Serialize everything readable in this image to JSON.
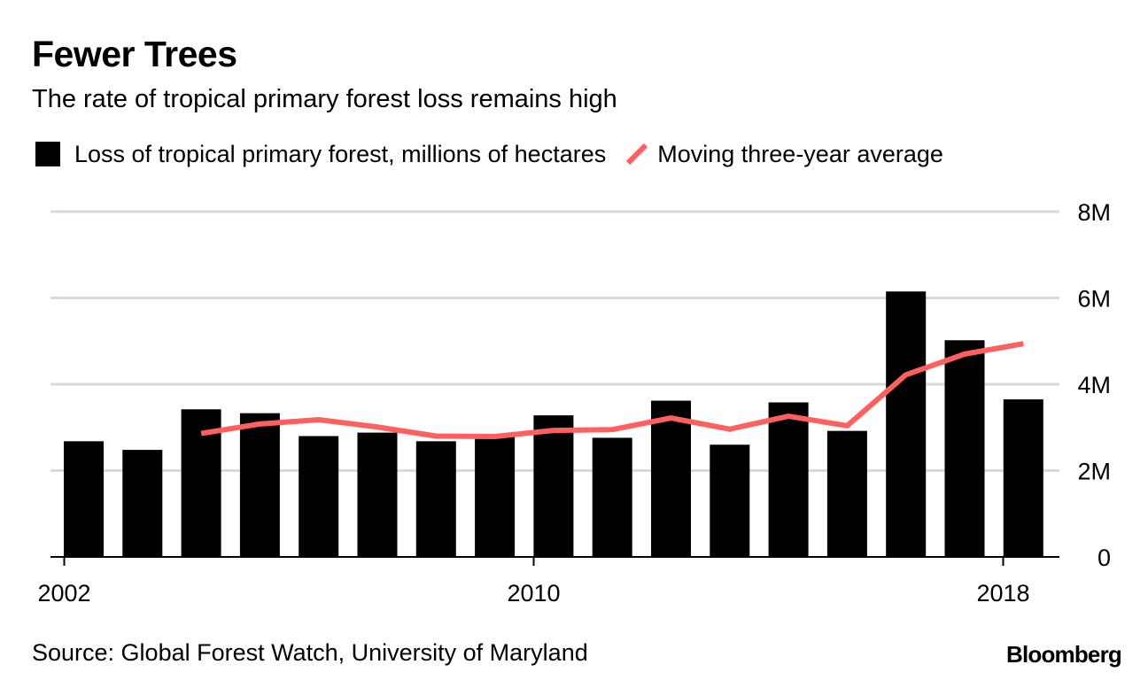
{
  "title": "Fewer Trees",
  "subtitle": "The rate of tropical primary forest loss remains high",
  "legend": {
    "bars_label": "Loss of tropical primary forest, millions of hectares",
    "line_label": "Moving three-year average"
  },
  "source": "Source: Global Forest Watch, University of Maryland",
  "brand": "Bloomberg",
  "colors": {
    "bar": "#000000",
    "line": "#ff5f5f",
    "grid": "#d9d9d9"
  },
  "chart_data": {
    "type": "bar",
    "x": [
      2002,
      2003,
      2004,
      2005,
      2006,
      2007,
      2008,
      2009,
      2010,
      2011,
      2012,
      2013,
      2014,
      2015,
      2016,
      2017,
      2018
    ],
    "series": [
      {
        "name": "Loss of tropical primary forest, millions of hectares",
        "type": "bar",
        "values": [
          2.68,
          2.48,
          3.42,
          3.33,
          2.8,
          2.88,
          2.68,
          2.8,
          3.28,
          2.76,
          3.62,
          2.6,
          3.58,
          2.92,
          6.15,
          5.02,
          3.65
        ]
      },
      {
        "name": "Moving three-year average",
        "type": "line",
        "values": [
          null,
          null,
          2.86,
          3.08,
          3.18,
          3.01,
          2.8,
          2.79,
          2.93,
          2.95,
          3.22,
          2.96,
          3.26,
          3.04,
          4.22,
          4.7,
          4.94
        ]
      }
    ],
    "y_ticks": [
      {
        "value": 0,
        "label": "0"
      },
      {
        "value": 2,
        "label": "2M"
      },
      {
        "value": 4,
        "label": "4M"
      },
      {
        "value": 6,
        "label": "6M"
      },
      {
        "value": 8,
        "label": "8M"
      }
    ],
    "x_ticks": [
      {
        "value": 2002,
        "label": "2002"
      },
      {
        "value": 2010,
        "label": "2010"
      },
      {
        "value": 2018,
        "label": "2018"
      }
    ],
    "ylim": [
      0,
      8
    ],
    "y_axis_side": "right",
    "grid": true,
    "legend_position": "top-left"
  }
}
